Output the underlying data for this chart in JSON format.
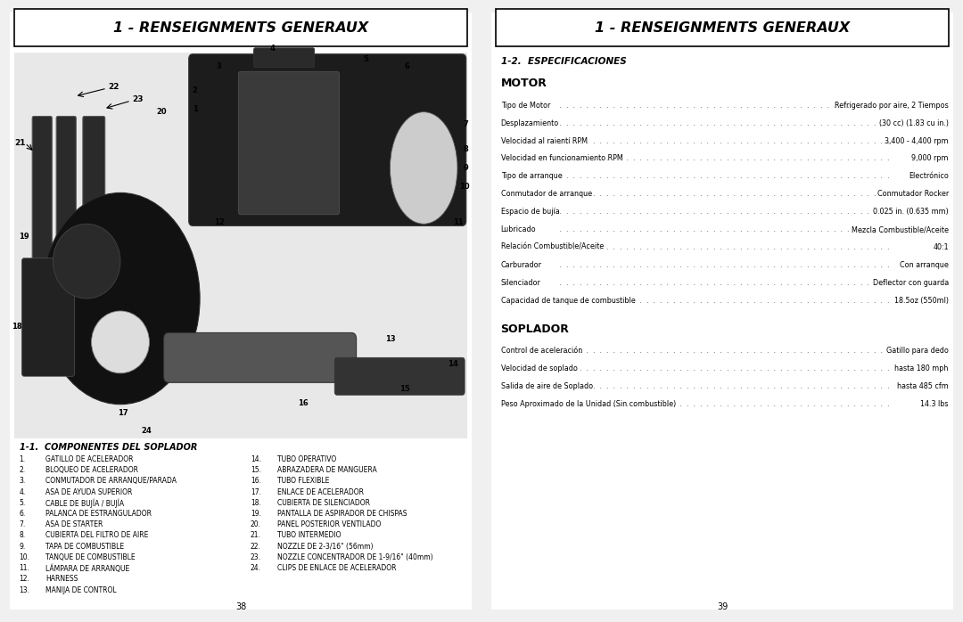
{
  "page_bg": "#f5f5f5",
  "header_bg": "#ffffff",
  "title": "1 - RENSEIGNMENTS GENERAUX",
  "left_page_number": "38",
  "right_page_number": "39",
  "section_12": "1-2.  ESPECIFICACIONES",
  "section_11": "1-1.  COMPONENTES DEL SOPLADOR",
  "motor_heading": "MOTOR",
  "soplador_heading": "SOPLADOR",
  "motor_specs": [
    [
      "Tipo de Motor",
      "Refrigerado por aire, 2 Tiempos"
    ],
    [
      "Desplazamiento",
      "(30 cc) (1.83 cu in.)"
    ],
    [
      "Velocidad al raientí RPM",
      "3,400 - 4,400 rpm"
    ],
    [
      "Velocidad en funcionamiento RPM",
      "9,000 rpm"
    ],
    [
      "Tipo de arranque",
      "Electrónico"
    ],
    [
      "Conmutador de arranque",
      "Conmutador Rocker"
    ],
    [
      "Espacio de bujía",
      "0.025 in. (0.635 mm)"
    ],
    [
      "Lubricado",
      "Mezcla Combustible/Aceite"
    ],
    [
      "Relación Combustible/Aceite",
      "40:1"
    ],
    [
      "Carburador",
      "Con arranque"
    ],
    [
      "Silenciador",
      "Deflector con guarda"
    ],
    [
      "Capacidad de tanque de combustible",
      "18.5oz (550ml)"
    ]
  ],
  "soplador_specs": [
    [
      "Control de aceleración",
      "Gatillo para dedo"
    ],
    [
      "Velocidad de soplado",
      "hasta 180 mph"
    ],
    [
      "Salida de aire de Soplado",
      "hasta 485 cfm"
    ],
    [
      "Peso Aproximado de la Unidad (Sin combustible)",
      "14.3 lbs"
    ]
  ],
  "left_col1": [
    [
      "1.",
      "GATILLO DE ACELERADOR"
    ],
    [
      "2.",
      "BLOQUEO DE ACELERADOR"
    ],
    [
      "3.",
      "CONMUTADOR DE ARRANQUE/PARADA"
    ],
    [
      "4.",
      "ASA DE AYUDA SUPERIOR"
    ],
    [
      "5.",
      "CABLE DE BUJÍA / BUJÍA"
    ],
    [
      "6.",
      "PALANCA DE ESTRANGULADOR"
    ],
    [
      "7.",
      "ASA DE STARTER"
    ],
    [
      "8.",
      "CUBIERTA DEL FILTRO DE AIRE"
    ],
    [
      "9.",
      "TAPA DE COMBUSTIBLE"
    ],
    [
      "10.",
      "TANQUE DE COMBUSTIBLE"
    ],
    [
      "11.",
      "LÁMPARA DE ARRANQUE"
    ],
    [
      "12.",
      "HARNESS"
    ],
    [
      "13.",
      "MANIJA DE CONTROL"
    ]
  ],
  "left_col2": [
    [
      "14.",
      "TUBO OPERATIVO"
    ],
    [
      "15.",
      "ABRAZADERA DE MANGUERA"
    ],
    [
      "16.",
      "TUBO FLEXIBLE"
    ],
    [
      "17.",
      "ENLACE DE ACELERADOR"
    ],
    [
      "18.",
      "CUBIERTA DE SILENCIADOR"
    ],
    [
      "19.",
      "PANTALLA DE ASPIRADOR DE CHISPAS"
    ],
    [
      "20.",
      "PANEL POSTERIOR VENTILADO"
    ],
    [
      "21.",
      "TUBO INTERMEDIO"
    ],
    [
      "22.",
      "NOZZLE DE 2-3/16\" (56mm)"
    ],
    [
      "23.",
      "NOZZLE CONCENTRADOR DE 1-9/16\" (40mm)"
    ],
    [
      "24.",
      "CLIPS DE ENLACE DE ACELERADOR"
    ]
  ]
}
